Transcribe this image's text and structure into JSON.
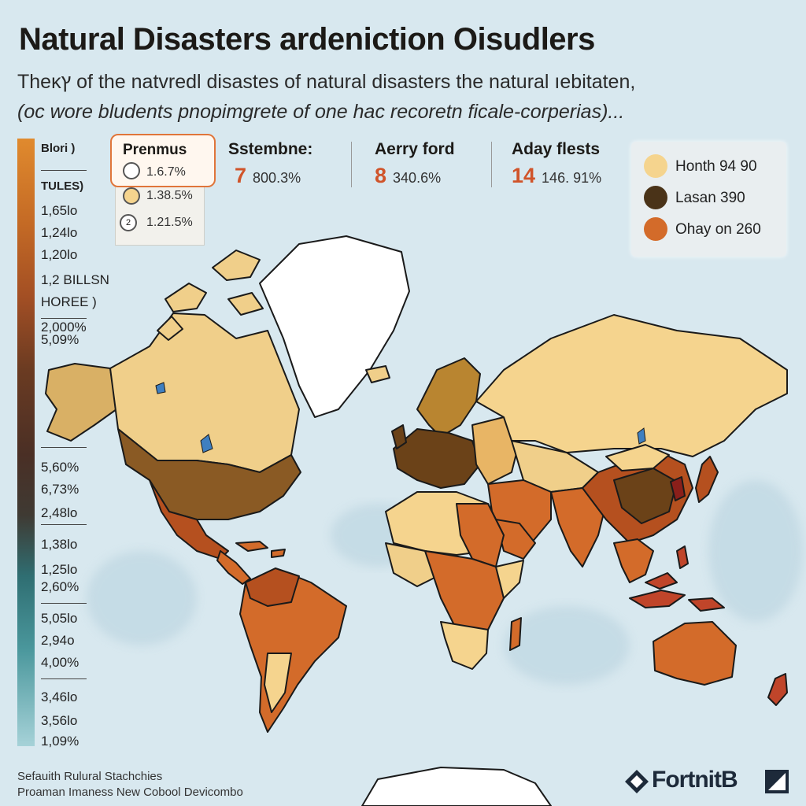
{
  "title": "Natural Disasters ardeniction Oisudlers",
  "subtitle_line1": "Thеκץ of the natvredl disastes of natural disasters the natural ıebitaten,",
  "subtitle_line2": "(oc wore bludents pnopimgrete of one hac recoretn ficale-corperias)...",
  "scale": {
    "labels": [
      "Blori )",
      "TULES)",
      "1,65lo",
      "1,24lo",
      "1,20lo",
      "1,2 BILLSN",
      "HOREE )",
      "2,000%",
      "5,09%",
      "5,60%",
      "6,73%",
      "2,48lo",
      "1,38lo",
      "1,25lo",
      "2,60%",
      "5,05lo",
      "2,94o",
      "4,00%",
      "3,46lo",
      "3,56lo",
      "1,09%"
    ]
  },
  "stats": {
    "box_title": "Prenmus",
    "ranks": [
      {
        "marker": "",
        "value": "1.6.7%"
      },
      {
        "marker": "",
        "value": "1.38.5%"
      },
      {
        "marker": "2",
        "value": "1.21.5%"
      }
    ],
    "columns": [
      {
        "heading": "Sstembne:",
        "big": "7",
        "small": "800.3%"
      },
      {
        "heading": "Aerry ford",
        "big": "8",
        "small": "340.6%"
      },
      {
        "heading": "Aday flests",
        "big": "14",
        "small": "146. 91%"
      }
    ]
  },
  "legend": {
    "items": [
      {
        "label": "Honth 94 90",
        "color": "#f5d48e"
      },
      {
        "label": "Lasan 390",
        "color": "#4a3318"
      },
      {
        "label": "Ohay on 260",
        "color": "#d36b2a"
      }
    ]
  },
  "colors": {
    "pale": "#f5d48e",
    "tan": "#d9b065",
    "orange": "#d36b2a",
    "rust": "#b5501f",
    "brown": "#6b4218",
    "dark": "#4a3318",
    "greenland": "#ffffff",
    "ocean": "#d8e8ef"
  },
  "footer": {
    "line1": "Sefauith Rulural Stachchies",
    "line2": "Proaman Imaness New Cobool Devicombo"
  },
  "logo_text": "FortnitB"
}
